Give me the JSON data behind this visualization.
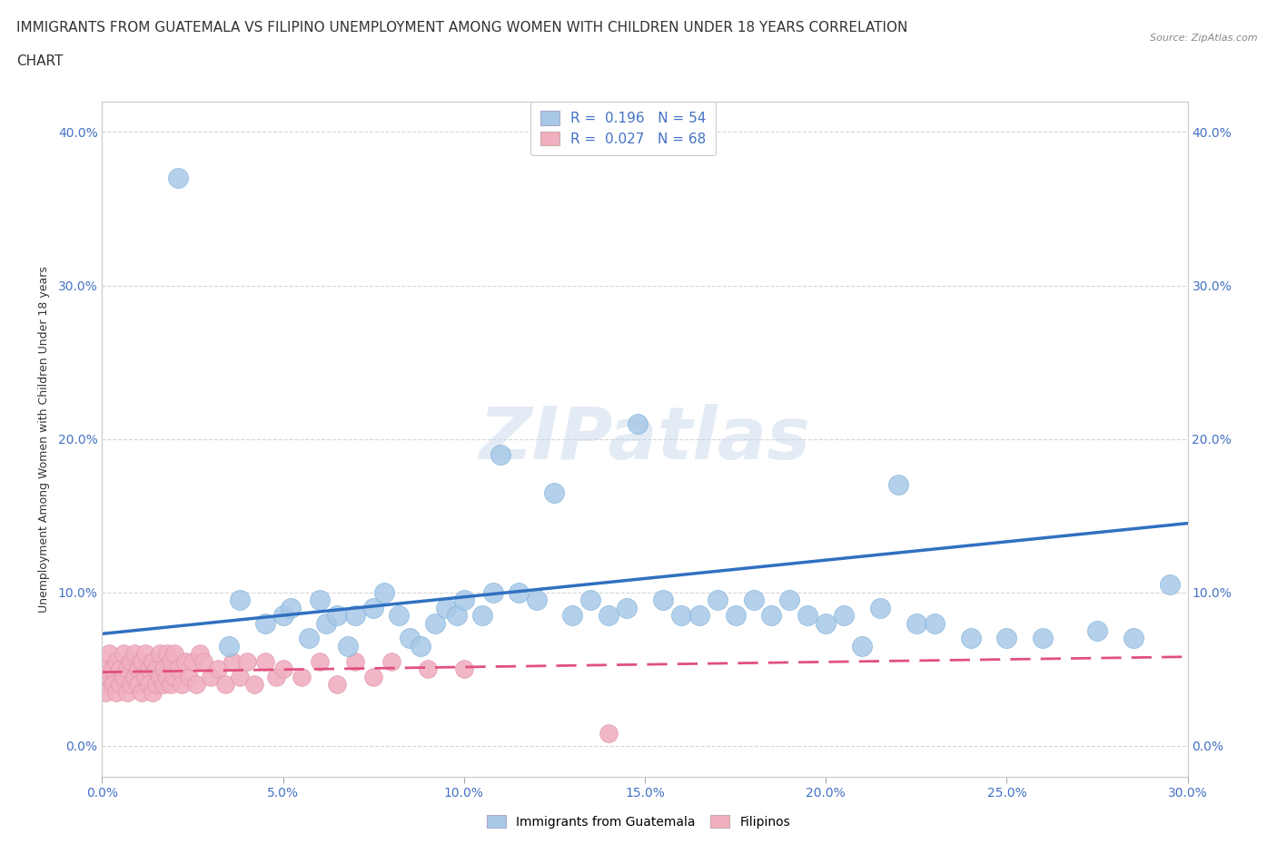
{
  "title_line1": "IMMIGRANTS FROM GUATEMALA VS FILIPINO UNEMPLOYMENT AMONG WOMEN WITH CHILDREN UNDER 18 YEARS CORRELATION",
  "title_line2": "CHART",
  "source": "Source: ZipAtlas.com",
  "xlim": [
    0,
    0.3
  ],
  "ylim": [
    -0.02,
    0.42
  ],
  "ylabel": "Unemployment Among Women with Children Under 18 years",
  "legend_item1": "R =  0.196   N = 54",
  "legend_item2": "R =  0.027   N = 68",
  "watermark": "ZIPatlas",
  "guatemala_color": "#a8c8e8",
  "guatemla_edge_color": "#7ab0d8",
  "filipino_color": "#f0b0c0",
  "filipino_edge_color": "#e090a8",
  "guatemala_line_color": "#3070c0",
  "filipino_line_color": "#e05080",
  "background_color": "#ffffff",
  "grid_color": "#cccccc",
  "title_fontsize": 11,
  "axis_label_fontsize": 9,
  "tick_fontsize": 10,
  "tick_color": "#4472c4",
  "guat_x": [
    0.021,
    0.035,
    0.038,
    0.045,
    0.05,
    0.052,
    0.057,
    0.06,
    0.062,
    0.065,
    0.068,
    0.07,
    0.075,
    0.078,
    0.082,
    0.085,
    0.088,
    0.092,
    0.095,
    0.098,
    0.1,
    0.105,
    0.108,
    0.11,
    0.115,
    0.12,
    0.125,
    0.13,
    0.135,
    0.14,
    0.145,
    0.148,
    0.155,
    0.16,
    0.165,
    0.17,
    0.175,
    0.18,
    0.185,
    0.19,
    0.195,
    0.2,
    0.205,
    0.21,
    0.215,
    0.22,
    0.225,
    0.23,
    0.24,
    0.25,
    0.26,
    0.275,
    0.285,
    0.295
  ],
  "guat_y": [
    0.37,
    0.065,
    0.095,
    0.08,
    0.085,
    0.09,
    0.07,
    0.095,
    0.08,
    0.085,
    0.065,
    0.085,
    0.09,
    0.1,
    0.085,
    0.07,
    0.065,
    0.08,
    0.09,
    0.085,
    0.095,
    0.085,
    0.1,
    0.19,
    0.1,
    0.095,
    0.165,
    0.085,
    0.095,
    0.085,
    0.09,
    0.21,
    0.095,
    0.085,
    0.085,
    0.095,
    0.085,
    0.095,
    0.085,
    0.095,
    0.085,
    0.08,
    0.085,
    0.065,
    0.09,
    0.17,
    0.08,
    0.08,
    0.07,
    0.07,
    0.07,
    0.075,
    0.07,
    0.105
  ],
  "fil_x": [
    0.0,
    0.001,
    0.001,
    0.002,
    0.002,
    0.003,
    0.003,
    0.004,
    0.004,
    0.005,
    0.005,
    0.006,
    0.006,
    0.007,
    0.007,
    0.008,
    0.008,
    0.009,
    0.009,
    0.01,
    0.01,
    0.011,
    0.011,
    0.012,
    0.012,
    0.013,
    0.013,
    0.014,
    0.014,
    0.015,
    0.015,
    0.016,
    0.016,
    0.017,
    0.017,
    0.018,
    0.018,
    0.019,
    0.019,
    0.02,
    0.02,
    0.021,
    0.022,
    0.023,
    0.024,
    0.025,
    0.026,
    0.027,
    0.028,
    0.03,
    0.032,
    0.034,
    0.036,
    0.038,
    0.04,
    0.042,
    0.045,
    0.048,
    0.05,
    0.055,
    0.06,
    0.065,
    0.07,
    0.075,
    0.08,
    0.09,
    0.1,
    0.14
  ],
  "fil_y": [
    0.04,
    0.05,
    0.035,
    0.06,
    0.045,
    0.05,
    0.04,
    0.055,
    0.035,
    0.05,
    0.04,
    0.06,
    0.045,
    0.05,
    0.035,
    0.055,
    0.04,
    0.06,
    0.045,
    0.05,
    0.04,
    0.055,
    0.035,
    0.06,
    0.045,
    0.05,
    0.04,
    0.055,
    0.035,
    0.05,
    0.04,
    0.06,
    0.045,
    0.05,
    0.04,
    0.06,
    0.045,
    0.055,
    0.04,
    0.06,
    0.045,
    0.05,
    0.04,
    0.055,
    0.045,
    0.055,
    0.04,
    0.06,
    0.055,
    0.045,
    0.05,
    0.04,
    0.055,
    0.045,
    0.055,
    0.04,
    0.055,
    0.045,
    0.05,
    0.045,
    0.055,
    0.04,
    0.055,
    0.045,
    0.055,
    0.05,
    0.05,
    0.008
  ],
  "guat_line_x": [
    0.0,
    0.3
  ],
  "guat_line_y": [
    0.073,
    0.145
  ],
  "fil_line_x": [
    0.0,
    0.3
  ],
  "fil_line_y": [
    0.048,
    0.058
  ],
  "x_tick_vals": [
    0.0,
    0.05,
    0.1,
    0.15,
    0.2,
    0.25,
    0.3
  ],
  "y_tick_vals": [
    0.0,
    0.1,
    0.2,
    0.3,
    0.4
  ]
}
